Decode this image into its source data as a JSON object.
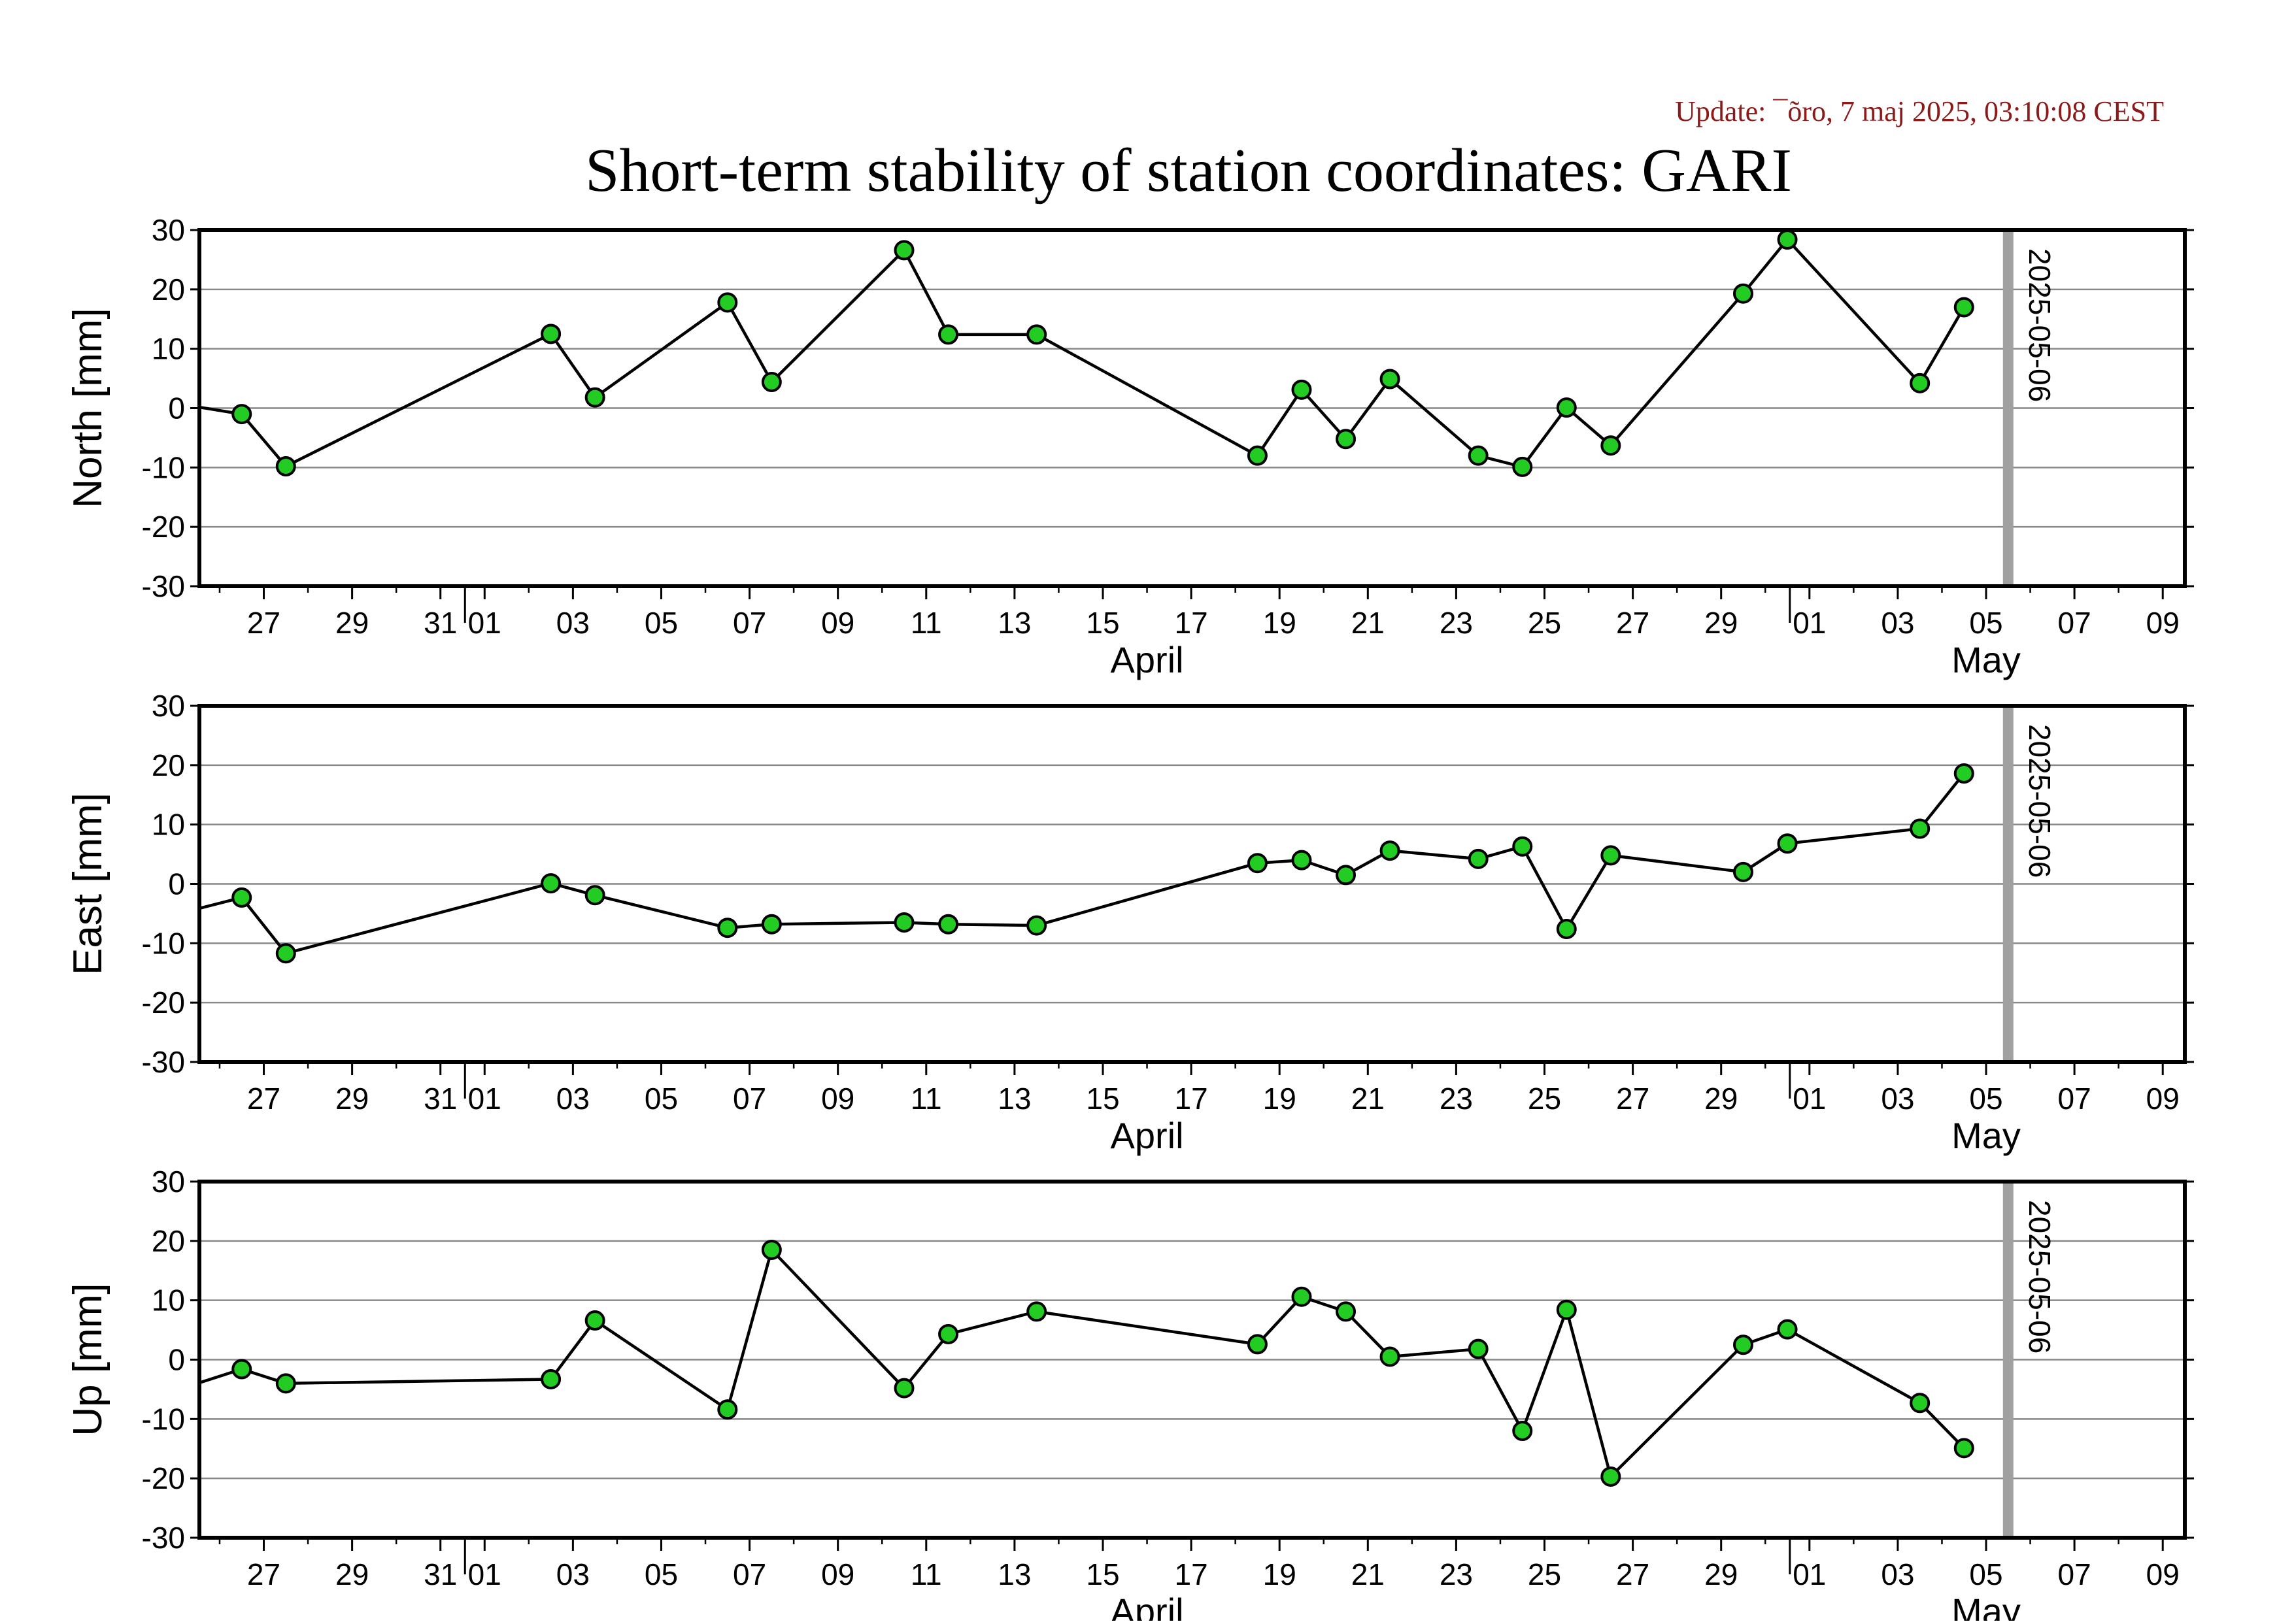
{
  "header": {
    "update_text": "Update: ¯õro, 7 maj 2025, 03:10:08 CEST",
    "title": "Short-term stability of station coordinates: GARI"
  },
  "colors": {
    "update_text": "#8b1a1a",
    "marker_fill": "#22cc22",
    "marker_edge": "#000000",
    "line": "#000000",
    "grid": "#888888",
    "current_day_bar": "#a0a0a0"
  },
  "chart_data": [
    {
      "type": "line",
      "name": "north",
      "ylabel": "North [mm]",
      "ylim": [
        -30,
        30
      ],
      "yticks": [
        -30,
        -20,
        -10,
        0,
        10,
        20,
        30
      ],
      "grid": true,
      "xlim": [
        "2025-03-25T13:00",
        "2025-05-09T12:00"
      ],
      "x": [
        "2025-03-25T12:00",
        "2025-03-26T12:00",
        "2025-03-27T12:00",
        "2025-04-02T12:00",
        "2025-04-03T12:00",
        "2025-04-06T12:00",
        "2025-04-07T12:00",
        "2025-04-10T12:00",
        "2025-04-11T12:00",
        "2025-04-13T12:00",
        "2025-04-18T12:00",
        "2025-04-19T12:00",
        "2025-04-20T12:00",
        "2025-04-21T12:00",
        "2025-04-23T12:00",
        "2025-04-24T12:00",
        "2025-04-25T12:00",
        "2025-04-26T12:00",
        "2025-04-29T12:00",
        "2025-04-30T12:00",
        "2025-05-03T12:00",
        "2025-05-04T12:00"
      ],
      "values": [
        0.2,
        -1.0,
        -9.8,
        12.5,
        1.8,
        17.8,
        4.4,
        26.6,
        12.4,
        12.4,
        -8.0,
        3.1,
        -5.2,
        4.9,
        -8.0,
        -9.9,
        0.1,
        -6.3,
        19.3,
        28.4,
        4.2,
        17.0
      ],
      "current_day_label": "2025-05-06",
      "current_day": "2025-05-05T12:00"
    },
    {
      "type": "line",
      "name": "east",
      "ylabel": "East [mm]",
      "ylim": [
        -30,
        30
      ],
      "yticks": [
        -30,
        -20,
        -10,
        0,
        10,
        20,
        30
      ],
      "grid": true,
      "xlim": [
        "2025-03-25T13:00",
        "2025-05-09T12:00"
      ],
      "x": [
        "2025-03-25T12:00",
        "2025-03-26T12:00",
        "2025-03-27T12:00",
        "2025-04-02T12:00",
        "2025-04-03T12:00",
        "2025-04-06T12:00",
        "2025-04-07T12:00",
        "2025-04-10T12:00",
        "2025-04-11T12:00",
        "2025-04-13T12:00",
        "2025-04-18T12:00",
        "2025-04-19T12:00",
        "2025-04-20T12:00",
        "2025-04-21T12:00",
        "2025-04-23T12:00",
        "2025-04-24T12:00",
        "2025-04-25T12:00",
        "2025-04-26T12:00",
        "2025-04-29T12:00",
        "2025-04-30T12:00",
        "2025-05-03T12:00",
        "2025-05-04T12:00"
      ],
      "values": [
        -4.2,
        -2.3,
        -11.7,
        0.1,
        -1.9,
        -7.4,
        -6.8,
        -6.5,
        -6.8,
        -7.0,
        3.5,
        4.0,
        1.5,
        5.6,
        4.2,
        6.3,
        -7.6,
        4.8,
        2.0,
        6.8,
        9.3,
        18.6
      ],
      "current_day_label": "2025-05-06",
      "current_day": "2025-05-05T12:00"
    },
    {
      "type": "line",
      "name": "up",
      "ylabel": "Up [mm]",
      "ylim": [
        -30,
        30
      ],
      "yticks": [
        -30,
        -20,
        -10,
        0,
        10,
        20,
        30
      ],
      "grid": true,
      "xlim": [
        "2025-03-25T13:00",
        "2025-05-09T12:00"
      ],
      "x": [
        "2025-03-25T12:00",
        "2025-03-26T12:00",
        "2025-03-27T12:00",
        "2025-04-02T12:00",
        "2025-04-03T12:00",
        "2025-04-06T12:00",
        "2025-04-07T12:00",
        "2025-04-10T12:00",
        "2025-04-11T12:00",
        "2025-04-13T12:00",
        "2025-04-18T12:00",
        "2025-04-19T12:00",
        "2025-04-20T12:00",
        "2025-04-21T12:00",
        "2025-04-23T12:00",
        "2025-04-24T12:00",
        "2025-04-25T12:00",
        "2025-04-26T12:00",
        "2025-04-29T12:00",
        "2025-04-30T12:00",
        "2025-05-03T12:00",
        "2025-05-04T12:00"
      ],
      "values": [
        -4.0,
        -1.6,
        -4.0,
        -3.3,
        6.6,
        -8.4,
        18.5,
        -4.8,
        4.3,
        8.1,
        2.6,
        10.6,
        8.1,
        0.5,
        1.8,
        -12.0,
        8.4,
        -19.7,
        2.5,
        5.1,
        -7.3,
        -14.9
      ],
      "current_day_label": "2025-05-06",
      "current_day": "2025-05-05T12:00"
    }
  ],
  "xaxis": {
    "day_ticks": [
      {
        "date": "2025-03-27",
        "label": "27"
      },
      {
        "date": "2025-03-29",
        "label": "29"
      },
      {
        "date": "2025-03-31",
        "label": "31"
      },
      {
        "date": "2025-04-01",
        "label": "01"
      },
      {
        "date": "2025-04-03",
        "label": "03"
      },
      {
        "date": "2025-04-05",
        "label": "05"
      },
      {
        "date": "2025-04-07",
        "label": "07"
      },
      {
        "date": "2025-04-09",
        "label": "09"
      },
      {
        "date": "2025-04-11",
        "label": "11"
      },
      {
        "date": "2025-04-13",
        "label": "13"
      },
      {
        "date": "2025-04-15",
        "label": "15"
      },
      {
        "date": "2025-04-17",
        "label": "17"
      },
      {
        "date": "2025-04-19",
        "label": "19"
      },
      {
        "date": "2025-04-21",
        "label": "21"
      },
      {
        "date": "2025-04-23",
        "label": "23"
      },
      {
        "date": "2025-04-25",
        "label": "25"
      },
      {
        "date": "2025-04-27",
        "label": "27"
      },
      {
        "date": "2025-04-29",
        "label": "29"
      },
      {
        "date": "2025-05-01",
        "label": "01"
      },
      {
        "date": "2025-05-03",
        "label": "03"
      },
      {
        "date": "2025-05-05",
        "label": "05"
      },
      {
        "date": "2025-05-07",
        "label": "07"
      },
      {
        "date": "2025-05-09",
        "label": "09"
      }
    ],
    "month_boundaries": [
      "2025-04-01",
      "2025-05-01"
    ],
    "month_labels": [
      {
        "label": "April",
        "date": "2025-04-16"
      },
      {
        "label": "May",
        "date": "2025-05-05"
      }
    ]
  }
}
